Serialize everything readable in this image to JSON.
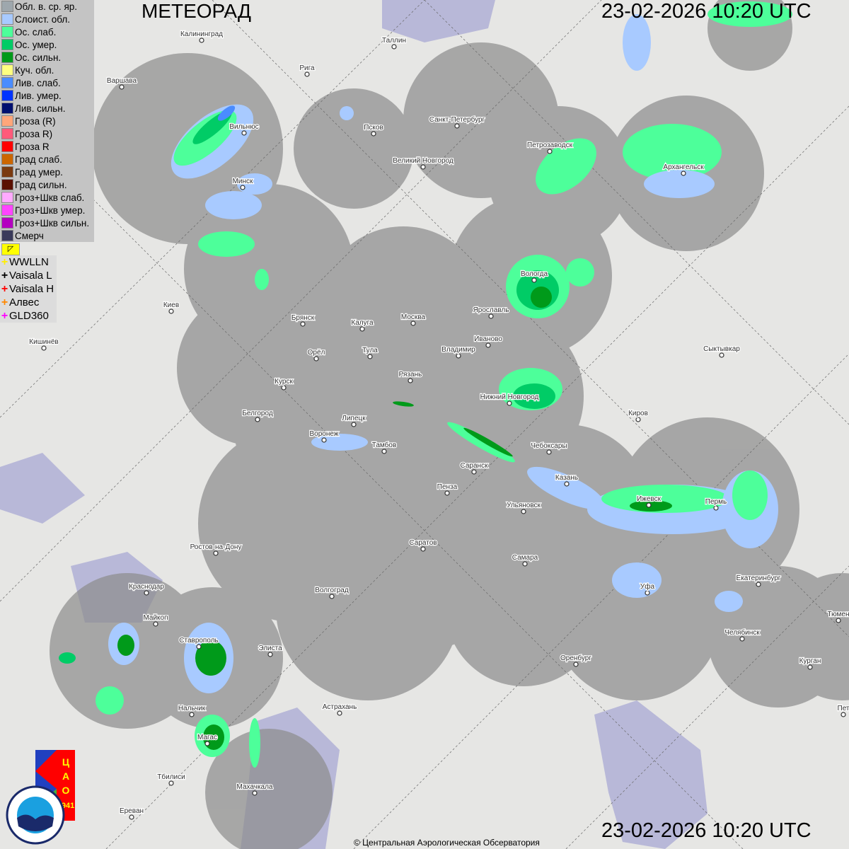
{
  "header": {
    "title": "МЕТЕОРАД",
    "timestamp_top": "23-02-2026  10:20 UTC",
    "timestamp_bottom": "23-02-2026  10:20 UTC"
  },
  "legend": [
    {
      "label": "Обл. в. ср. яр.",
      "color": "#9ea7ad"
    },
    {
      "label": "Слоист. обл.",
      "color": "#a8caff"
    },
    {
      "label": "Ос. слаб.",
      "color": "#4dff9a"
    },
    {
      "label": "Ос. умер.",
      "color": "#00cc66"
    },
    {
      "label": "Ос. сильн.",
      "color": "#009a1a"
    },
    {
      "label": "Куч. обл.",
      "color": "#ffff80"
    },
    {
      "label": "Лив. слаб.",
      "color": "#4a8cff"
    },
    {
      "label": "Лив. умер.",
      "color": "#0033ff"
    },
    {
      "label": "Лив. сильн.",
      "color": "#001070"
    },
    {
      "label": "Гроза (R)",
      "color": "#ffa67a"
    },
    {
      "label": "Гроза R)",
      "color": "#ff5a7a"
    },
    {
      "label": "Гроза R",
      "color": "#ff0000"
    },
    {
      "label": "Град слаб.",
      "color": "#cc6600"
    },
    {
      "label": "Град умер.",
      "color": "#7a3a10"
    },
    {
      "label": "Град сильн.",
      "color": "#5a1000"
    },
    {
      "label": "Гроз+Шкв слаб.",
      "color": "#ffaaff"
    },
    {
      "label": "Гроз+Шкв умер.",
      "color": "#ff44ff"
    },
    {
      "label": "Гроз+Шкв сильн.",
      "color": "#b400c0"
    },
    {
      "label": "Смерч",
      "color": "#3a3a5a"
    }
  ],
  "flag_icon": "corner-arrow-icon",
  "lightning_networks": [
    {
      "label": "WWLLN",
      "color": "#ffee00"
    },
    {
      "label": "Vaisala L",
      "color": "#000000"
    },
    {
      "label": "Vaisala H",
      "color": "#ff0000"
    },
    {
      "label": "Алвес",
      "color": "#ff8800"
    },
    {
      "label": "GLD360",
      "color": "#ff00ff"
    }
  ],
  "cities": [
    "Калининград",
    "Таллин",
    "Рига",
    "Варшава",
    "Вильнюс",
    "Псков",
    "Санкт-Петербург",
    "Великий Новгород",
    "Петрозаводск",
    "Архангельск",
    "Минск",
    "Вологда",
    "Киев",
    "Брянск",
    "Калуга",
    "Москва",
    "Ярославль",
    "Иваново",
    "Владимир",
    "Тула",
    "Орёл",
    "Кишинёв",
    "Сыктывкар",
    "Рязань",
    "Курск",
    "Нижний Новгород",
    "Белгород",
    "Киров",
    "Липецк",
    "Воронеж",
    "Тамбов",
    "Чебоксары",
    "Саранск",
    "Казань",
    "Пенза",
    "Ижевск",
    "Пермь",
    "Ульяновск",
    "Ростов-на-Дону",
    "Саратов",
    "Самара",
    "Уфа",
    "Краснодар",
    "Екатеринбург",
    "Волгоград",
    "Майкоп",
    "Тюмен",
    "Челябинск",
    "Ставрополь",
    "Элиста",
    "Оренбург",
    "Курган",
    "Астрахань",
    "Пет",
    "Нальчик",
    "Магас",
    "Тбилиси",
    "Махачкала",
    "Ереван"
  ],
  "logos": {
    "cao": "ЦАО 1941",
    "roshydromet": "РОСГИДРОМЕТ ROSHYDROMET"
  },
  "colors": {
    "radar_coverage": "#a4a4a4",
    "water": "#b8b8d8",
    "land": "#e6e6e4"
  },
  "footer": {
    "copyright": "© Центральная Аэрологическая Обсерватория"
  }
}
